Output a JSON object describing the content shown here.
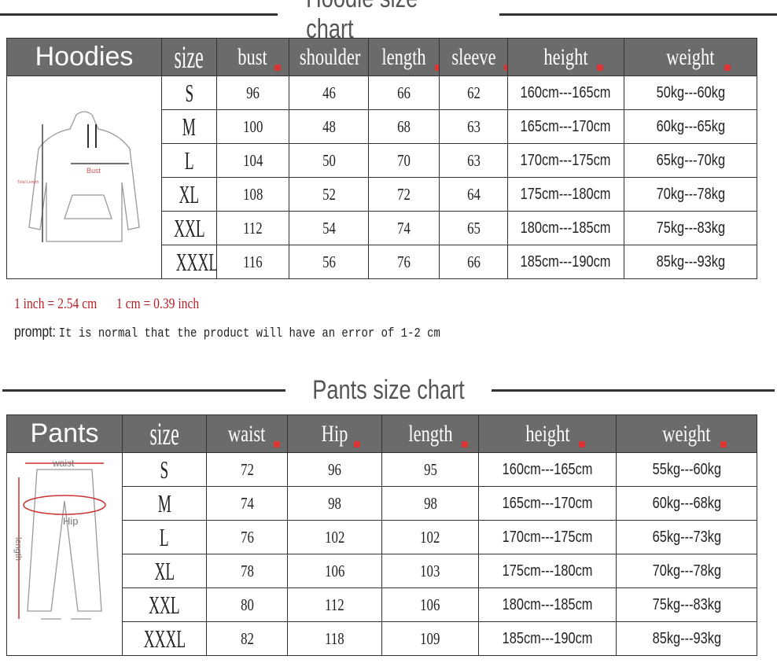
{
  "hoodie": {
    "title": "Hoodie size chart",
    "headers": [
      "Hoodies",
      "size",
      "bust",
      "shoulder",
      "length",
      "sleeve",
      "height",
      "weight"
    ],
    "diagram_labels": [
      "Bust",
      "Total Length"
    ],
    "rows": [
      [
        "S",
        "96",
        "46",
        "66",
        "62",
        "160cm---165cm",
        "50kg---60kg"
      ],
      [
        "M",
        "100",
        "48",
        "68",
        "63",
        "165cm---170cm",
        "60kg---65kg"
      ],
      [
        "L",
        "104",
        "50",
        "70",
        "63",
        "170cm---175cm",
        "65kg---70kg"
      ],
      [
        "XL",
        "108",
        "52",
        "72",
        "64",
        "175cm---180cm",
        "70kg---78kg"
      ],
      [
        "XXL",
        "112",
        "54",
        "74",
        "65",
        "180cm---185cm",
        "75kg---83kg"
      ],
      [
        "XXXL",
        "116",
        "56",
        "76",
        "66",
        "185cm---190cm",
        "85kg---93kg"
      ]
    ]
  },
  "notes": {
    "conversion1": "1 inch = 2.54 cm",
    "conversion2": "1 cm = 0.39 inch",
    "prompt_label": "prompt:",
    "prompt_text": "It is normal that the product will have an error of 1-2 cm"
  },
  "pants": {
    "title": "Pants size chart",
    "headers": [
      "Pants",
      "size",
      "waist",
      "Hip",
      "length",
      "height",
      "weight"
    ],
    "diagram_labels": [
      "waist",
      "Hip",
      "length"
    ],
    "rows": [
      [
        "S",
        "72",
        "96",
        "95",
        "160cm---165cm",
        "55kg---60kg"
      ],
      [
        "M",
        "74",
        "98",
        "98",
        "165cm---170cm",
        "60kg---68kg"
      ],
      [
        "L",
        "76",
        "102",
        "102",
        "170cm---175cm",
        "65kg---73kg"
      ],
      [
        "XL",
        "78",
        "106",
        "103",
        "175cm---180cm",
        "70kg---78kg"
      ],
      [
        "XXL",
        "80",
        "112",
        "106",
        "180cm---185cm",
        "75kg---83kg"
      ],
      [
        "XXXL",
        "82",
        "118",
        "109",
        "185cm---190cm",
        "85kg---93kg"
      ]
    ]
  },
  "colors": {
    "header_bg": "#6b6b6b",
    "note_red": "#b3202a"
  }
}
